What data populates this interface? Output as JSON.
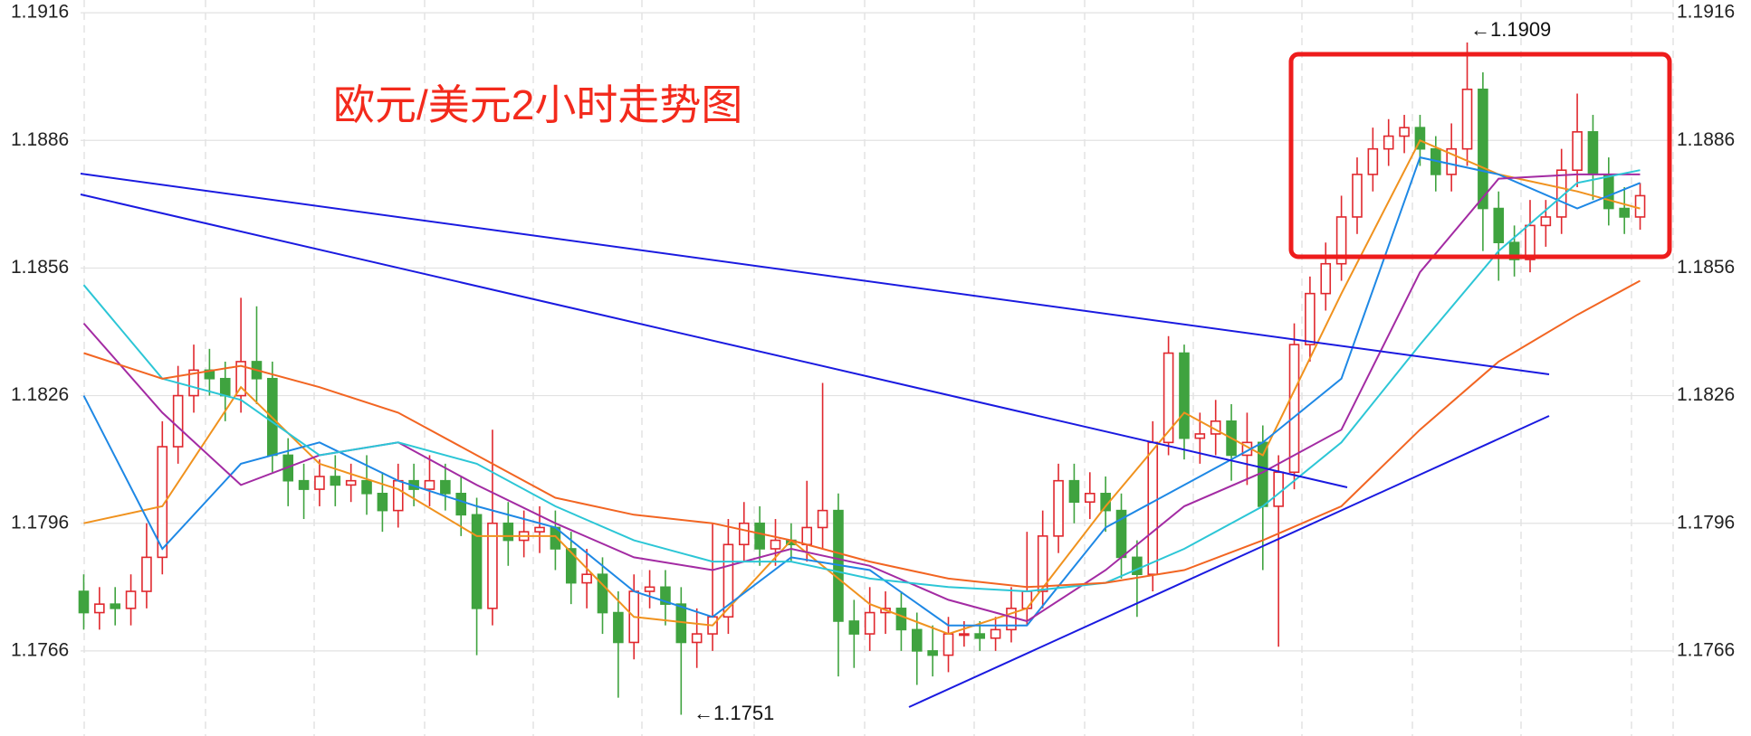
{
  "chart_data": {
    "type": "candlestick",
    "title": "欧元/美元2小时走势图",
    "annotations": [
      "←1.1909",
      "←1.1751"
    ],
    "up_color": "#e0282e",
    "down_color": "#3fa33f",
    "grid": true,
    "xlim": [
      -0.2,
      101.1
    ],
    "ylim": [
      1.1746,
      1.1919
    ],
    "yticks": [
      1.1766,
      1.1796,
      1.1826,
      1.1856,
      1.1886,
      1.1916
    ],
    "open": [
      1.178,
      1.1775,
      1.1777,
      1.1776,
      1.178,
      1.1788,
      1.1814,
      1.1826,
      1.1832,
      1.183,
      1.1826,
      1.1834,
      1.183,
      1.1812,
      1.1806,
      1.1804,
      1.1807,
      1.1805,
      1.1806,
      1.1803,
      1.1799,
      1.1806,
      1.1804,
      1.1806,
      1.1803,
      1.1798,
      1.1776,
      1.1796,
      1.1792,
      1.1794,
      1.1795,
      1.179,
      1.1782,
      1.1784,
      1.1775,
      1.1768,
      1.178,
      1.1781,
      1.1777,
      1.1768,
      1.177,
      1.1774,
      1.1791,
      1.1796,
      1.179,
      1.1792,
      1.1791,
      1.1795,
      1.1799,
      1.1773,
      1.177,
      1.1775,
      1.1776,
      1.1771,
      1.1766,
      1.1765,
      1.177,
      1.177,
      1.1769,
      1.1771,
      1.1776,
      1.178,
      1.1793,
      1.1806,
      1.1801,
      1.1803,
      1.1799,
      1.1788,
      1.1784,
      1.1815,
      1.1836,
      1.1816,
      1.1817,
      1.182,
      1.1812,
      1.1815,
      1.18,
      1.1808,
      1.1838,
      1.185,
      1.1857,
      1.1868,
      1.1878,
      1.1884,
      1.1887,
      1.1889,
      1.1884,
      1.1878,
      1.1884,
      1.1898,
      1.187,
      1.1862,
      1.1858,
      1.1866,
      1.1868,
      1.1879,
      1.1888,
      1.1878,
      1.187,
      1.1868
    ],
    "high": [
      1.1784,
      1.1781,
      1.1781,
      1.1784,
      1.1796,
      1.182,
      1.1833,
      1.1838,
      1.1837,
      1.1834,
      1.1849,
      1.1847,
      1.1834,
      1.1816,
      1.181,
      1.1811,
      1.1812,
      1.181,
      1.1812,
      1.1808,
      1.181,
      1.181,
      1.1812,
      1.181,
      1.1807,
      1.1802,
      1.1818,
      1.1801,
      1.1799,
      1.18,
      1.1799,
      1.1794,
      1.179,
      1.1788,
      1.178,
      1.1784,
      1.1785,
      1.1785,
      1.1781,
      1.1776,
      1.1796,
      1.1797,
      1.1801,
      1.18,
      1.1797,
      1.1796,
      1.1806,
      1.1829,
      1.1803,
      1.1778,
      1.1781,
      1.178,
      1.178,
      1.1775,
      1.1772,
      1.1774,
      1.1773,
      1.1773,
      1.1774,
      1.1781,
      1.1794,
      1.1799,
      1.181,
      1.181,
      1.1808,
      1.1807,
      1.1803,
      1.1792,
      1.182,
      1.184,
      1.1838,
      1.1822,
      1.1825,
      1.1824,
      1.1822,
      1.1819,
      1.1812,
      1.1843,
      1.1854,
      1.1862,
      1.1873,
      1.1882,
      1.1889,
      1.1891,
      1.1892,
      1.1892,
      1.1887,
      1.189,
      1.1909,
      1.1902,
      1.1874,
      1.1866,
      1.1872,
      1.1872,
      1.1884,
      1.1897,
      1.1892,
      1.1882,
      1.1875,
      1.1876
    ],
    "low": [
      1.1771,
      1.1771,
      1.1772,
      1.1772,
      1.1776,
      1.1784,
      1.181,
      1.1822,
      1.1826,
      1.182,
      1.1822,
      1.1824,
      1.1808,
      1.18,
      1.1797,
      1.18,
      1.18,
      1.1801,
      1.1798,
      1.1794,
      1.1795,
      1.18,
      1.18,
      1.1799,
      1.1793,
      1.1765,
      1.1772,
      1.1786,
      1.1788,
      1.1789,
      1.1785,
      1.1777,
      1.1776,
      1.177,
      1.1755,
      1.1764,
      1.1776,
      1.1772,
      1.1751,
      1.1762,
      1.1766,
      1.177,
      1.1787,
      1.1786,
      1.1786,
      1.1787,
      1.1787,
      1.179,
      1.176,
      1.1762,
      1.1766,
      1.177,
      1.1766,
      1.1758,
      1.176,
      1.1761,
      1.1767,
      1.1766,
      1.1766,
      1.1768,
      1.1772,
      1.1776,
      1.1789,
      1.1796,
      1.1797,
      1.1794,
      1.1783,
      1.1774,
      1.178,
      1.1812,
      1.1811,
      1.181,
      1.1812,
      1.1806,
      1.1805,
      1.1785,
      1.1767,
      1.1804,
      1.1834,
      1.1846,
      1.1853,
      1.1864,
      1.1874,
      1.188,
      1.1883,
      1.188,
      1.1874,
      1.1874,
      1.188,
      1.186,
      1.1853,
      1.1854,
      1.1855,
      1.1861,
      1.1864,
      1.1875,
      1.1872,
      1.1866,
      1.1864,
      1.1865
    ],
    "close": [
      1.1775,
      1.1777,
      1.1776,
      1.178,
      1.1788,
      1.1814,
      1.1826,
      1.1832,
      1.183,
      1.1826,
      1.1834,
      1.183,
      1.1812,
      1.1806,
      1.1804,
      1.1807,
      1.1805,
      1.1806,
      1.1803,
      1.1799,
      1.1806,
      1.1804,
      1.1806,
      1.1803,
      1.1798,
      1.1776,
      1.1796,
      1.1792,
      1.1794,
      1.1795,
      1.179,
      1.1782,
      1.1784,
      1.1775,
      1.1768,
      1.178,
      1.1781,
      1.1777,
      1.1768,
      1.177,
      1.1774,
      1.1791,
      1.1796,
      1.179,
      1.1792,
      1.1791,
      1.1795,
      1.1799,
      1.1773,
      1.177,
      1.1775,
      1.1776,
      1.1771,
      1.1766,
      1.1765,
      1.177,
      1.177,
      1.1769,
      1.1771,
      1.1776,
      1.178,
      1.1793,
      1.1806,
      1.1801,
      1.1803,
      1.1799,
      1.1788,
      1.1784,
      1.1815,
      1.1836,
      1.1816,
      1.1817,
      1.182,
      1.1812,
      1.1815,
      1.18,
      1.1808,
      1.1838,
      1.185,
      1.1857,
      1.1868,
      1.1878,
      1.1884,
      1.1887,
      1.1889,
      1.1884,
      1.1878,
      1.1884,
      1.1898,
      1.187,
      1.1862,
      1.1858,
      1.1866,
      1.1868,
      1.1879,
      1.1888,
      1.1878,
      1.187,
      1.1868,
      1.1873
    ],
    "series": [
      {
        "color": "#f0921e",
        "x": [
          0,
          5,
          10,
          15,
          20,
          25,
          30,
          35,
          40,
          45,
          50,
          55,
          60,
          65,
          70,
          75,
          80,
          85,
          90,
          95,
          99
        ],
        "values": [
          1.1796,
          1.18,
          1.1828,
          1.181,
          1.1804,
          1.1793,
          1.1793,
          1.1774,
          1.1772,
          1.1792,
          1.1777,
          1.177,
          1.1776,
          1.18,
          1.1822,
          1.1812,
          1.185,
          1.1886,
          1.1878,
          1.1874,
          1.187
        ]
      },
      {
        "color": "#1e88e5",
        "x": [
          0,
          5,
          10,
          15,
          20,
          25,
          30,
          35,
          40,
          45,
          50,
          55,
          60,
          65,
          70,
          75,
          80,
          85,
          90,
          95,
          99
        ],
        "values": [
          1.1826,
          1.179,
          1.181,
          1.1815,
          1.1806,
          1.18,
          1.1795,
          1.178,
          1.1774,
          1.1788,
          1.1785,
          1.1772,
          1.1772,
          1.1795,
          1.1805,
          1.1815,
          1.183,
          1.1882,
          1.1878,
          1.187,
          1.1876
        ]
      },
      {
        "color": "#a32ba3",
        "x": [
          0,
          5,
          10,
          15,
          20,
          25,
          30,
          35,
          40,
          45,
          50,
          55,
          60,
          65,
          70,
          75,
          80,
          85,
          90,
          95,
          99
        ],
        "values": [
          1.1843,
          1.1822,
          1.1805,
          1.1812,
          1.1815,
          1.1805,
          1.1796,
          1.1788,
          1.1785,
          1.179,
          1.1786,
          1.1778,
          1.1773,
          1.1785,
          1.18,
          1.1808,
          1.1818,
          1.1855,
          1.1877,
          1.1878,
          1.1878
        ]
      },
      {
        "color": "#2cc6d6",
        "x": [
          0,
          5,
          10,
          15,
          20,
          25,
          30,
          35,
          40,
          45,
          50,
          55,
          60,
          65,
          70,
          75,
          80,
          85,
          90,
          95,
          99
        ],
        "values": [
          1.1852,
          1.183,
          1.1825,
          1.1812,
          1.1815,
          1.181,
          1.18,
          1.1792,
          1.1787,
          1.1787,
          1.1783,
          1.1781,
          1.178,
          1.1782,
          1.179,
          1.18,
          1.1815,
          1.1838,
          1.186,
          1.1876,
          1.1879
        ]
      },
      {
        "color": "#f26522",
        "x": [
          0,
          5,
          10,
          15,
          20,
          25,
          30,
          35,
          40,
          45,
          50,
          55,
          60,
          65,
          70,
          75,
          80,
          85,
          90,
          95,
          99
        ],
        "values": [
          1.1836,
          1.183,
          1.1833,
          1.1828,
          1.1822,
          1.1812,
          1.1802,
          1.1798,
          1.1796,
          1.1792,
          1.1787,
          1.1783,
          1.1781,
          1.1782,
          1.1785,
          1.1792,
          1.18,
          1.1818,
          1.1834,
          1.1845,
          1.1853
        ]
      }
    ]
  }
}
